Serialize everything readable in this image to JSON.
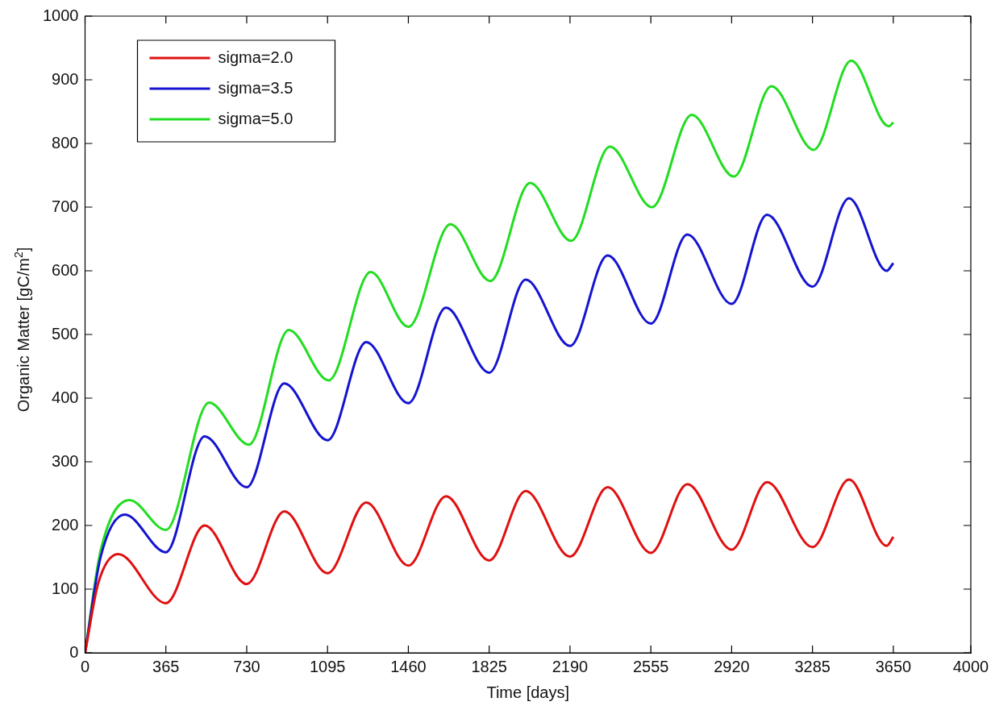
{
  "chart_data": {
    "type": "line",
    "xlabel": "Time [days]",
    "ylabel": "Organic Matter [gC/m$^{2}$]",
    "xlim": [
      0,
      4000
    ],
    "xticks": [
      0,
      365,
      730,
      1095,
      1460,
      1825,
      2190,
      2555,
      2920,
      3285,
      3650,
      4000
    ],
    "ylim": [
      0,
      1000
    ],
    "yticks": [
      0,
      100,
      200,
      300,
      400,
      500,
      600,
      700,
      800,
      900,
      1000
    ],
    "grid": false,
    "legend": "top left",
    "marker": "none",
    "line_style": "solid",
    "series": [
      {
        "name": "sigma=2.0",
        "color": "#e01010",
        "x": [
          0,
          60,
          150,
          365,
          540,
          730,
          900,
          1095,
          1270,
          1460,
          1630,
          1825,
          1990,
          2190,
          2360,
          2555,
          2720,
          2920,
          3080,
          3285,
          3450,
          3620,
          3650
        ],
        "values": [
          0,
          110,
          155,
          78,
          200,
          108,
          222,
          125,
          236,
          137,
          246,
          145,
          254,
          151,
          260,
          157,
          265,
          162,
          268,
          166,
          272,
          168,
          182
        ]
      },
      {
        "name": "sigma=3.5",
        "color": "#1414d0",
        "x": [
          0,
          70,
          180,
          365,
          540,
          730,
          900,
          1095,
          1270,
          1460,
          1630,
          1825,
          1990,
          2190,
          2360,
          2555,
          2720,
          2920,
          3080,
          3285,
          3450,
          3620,
          3650
        ],
        "values": [
          0,
          150,
          217,
          158,
          340,
          260,
          423,
          334,
          488,
          392,
          542,
          440,
          586,
          482,
          624,
          517,
          657,
          548,
          688,
          575,
          714,
          600,
          612
        ]
      },
      {
        "name": "sigma=5.0",
        "color": "#22dd22",
        "x": [
          0,
          70,
          200,
          365,
          560,
          740,
          920,
          1100,
          1290,
          1460,
          1650,
          1830,
          2010,
          2195,
          2370,
          2560,
          2740,
          2930,
          3100,
          3290,
          3460,
          3630,
          3650
        ],
        "values": [
          0,
          160,
          240,
          193,
          393,
          327,
          507,
          428,
          598,
          512,
          673,
          584,
          738,
          647,
          795,
          700,
          845,
          748,
          890,
          790,
          930,
          827,
          833
        ]
      }
    ]
  }
}
